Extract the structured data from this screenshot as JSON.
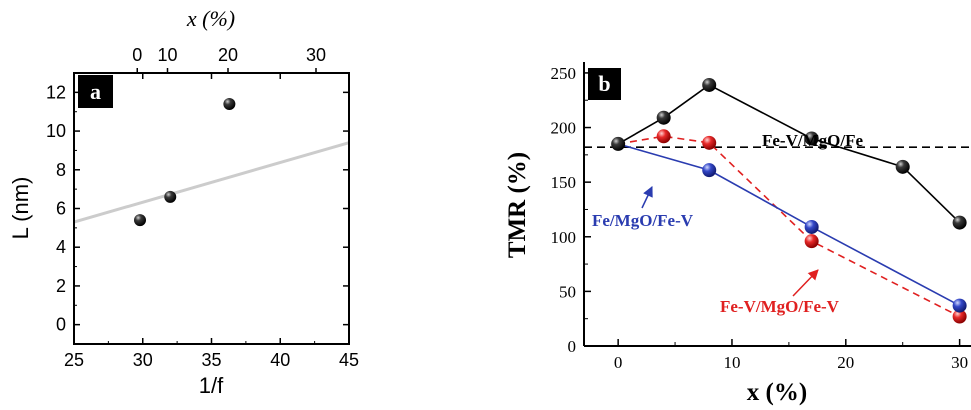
{
  "chart_data": [
    {
      "type": "scatter",
      "panel_label": "a",
      "xlabel": "1/f",
      "ylabel": "L (nm)",
      "top_axis_label": "x (%)",
      "xlim": [
        25,
        45
      ],
      "ylim": [
        -1,
        13
      ],
      "xticks": [
        25,
        30,
        35,
        40,
        45
      ],
      "yticks": [
        0,
        2,
        4,
        6,
        8,
        10,
        12
      ],
      "top_ticks": [
        {
          "x": 29.6,
          "label": "0"
        },
        {
          "x": 31.8,
          "label": "10"
        },
        {
          "x": 36.2,
          "label": "20"
        },
        {
          "x": 42.6,
          "label": "30"
        }
      ],
      "points": [
        {
          "x": 29.8,
          "y": 5.4
        },
        {
          "x": 32.0,
          "y": 6.6
        },
        {
          "x": 36.3,
          "y": 11.4
        }
      ],
      "fit_line": {
        "x": [
          25,
          45
        ],
        "y": [
          5.3,
          9.4
        ],
        "color": "#cccccc"
      },
      "grid": false
    },
    {
      "type": "line",
      "panel_label": "b",
      "xlabel": "x (%)",
      "ylabel": "TMR (%)",
      "xlim": [
        -3,
        31
      ],
      "ylim": [
        0,
        260
      ],
      "xticks": [
        0,
        10,
        20,
        30
      ],
      "yticks": [
        0,
        50,
        100,
        150,
        200,
        250
      ],
      "reference_line": {
        "y": 182,
        "style": "dashed",
        "color": "#000000"
      },
      "series": [
        {
          "name": "Fe-V/MgO/Fe",
          "color": "#000000",
          "marker_color": "#222222",
          "line_style": "solid",
          "x": [
            0,
            4,
            8,
            17,
            25,
            30
          ],
          "y": [
            185,
            209,
            239,
            190,
            164,
            113
          ]
        },
        {
          "name": "Fe-V/MgO/Fe-V",
          "color": "#e02020",
          "marker_color": "#e02020",
          "line_style": "dashed",
          "x": [
            0,
            4,
            8,
            17,
            30
          ],
          "y": [
            185,
            192,
            186,
            96,
            27
          ]
        },
        {
          "name": "Fe/MgO/Fe-V",
          "color": "#2a3cb0",
          "marker_color": "#2a3cb0",
          "line_style": "solid",
          "x": [
            0,
            8,
            17,
            30
          ],
          "y": [
            185,
            161,
            109,
            37
          ]
        }
      ],
      "grid": false
    }
  ]
}
